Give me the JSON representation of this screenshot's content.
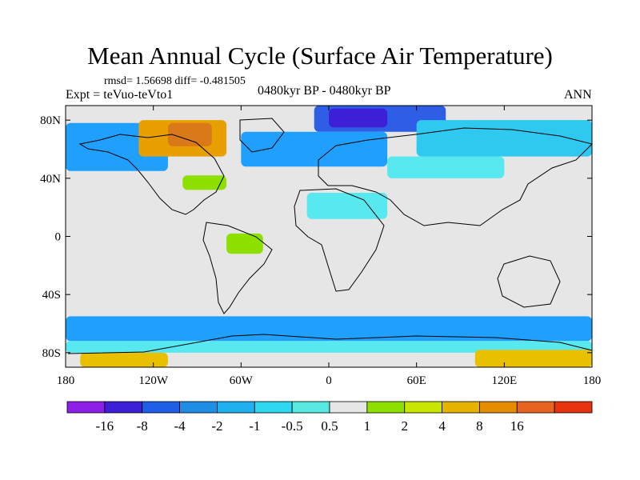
{
  "title": "Mean Annual Cycle (Surface Air Temperature)",
  "stats": "rmsd= 1.56698 diff= -0.481505",
  "experiment": "Expt = teVuo-teVto1",
  "period": "0480kyr BP - 0480kyr BP",
  "season": "ANN",
  "map": {
    "projection": "cylindrical equidistant",
    "lon_range": [
      -180,
      180
    ],
    "lat_range": [
      -90,
      90
    ],
    "lat_labels": [
      {
        "lat": 80,
        "text": "80N"
      },
      {
        "lat": 40,
        "text": "40N"
      },
      {
        "lat": 0,
        "text": "0"
      },
      {
        "lat": -40,
        "text": "40S"
      },
      {
        "lat": -80,
        "text": "80S"
      }
    ],
    "lon_labels": [
      {
        "lon": -180,
        "text": "180"
      },
      {
        "lon": -120,
        "text": "120W"
      },
      {
        "lon": -60,
        "text": "60W"
      },
      {
        "lon": 0,
        "text": "0"
      },
      {
        "lon": 60,
        "text": "60E"
      },
      {
        "lon": 120,
        "text": "120E"
      },
      {
        "lon": 180,
        "text": "180"
      }
    ],
    "background_color": "#e6e6e6",
    "regions": [
      {
        "name": "arctic-cold",
        "color": "#2e5ee6",
        "lon": [
          -10,
          80
        ],
        "lat": [
          72,
          90
        ]
      },
      {
        "name": "arctic-cold-core",
        "color": "#3c1fd6",
        "lon": [
          0,
          40
        ],
        "lat": [
          75,
          88
        ]
      },
      {
        "name": "north-pacific-cool",
        "color": "#1fa0ff",
        "lon": [
          -180,
          -110
        ],
        "lat": [
          45,
          78
        ]
      },
      {
        "name": "north-atlantic-cool",
        "color": "#1fa0ff",
        "lon": [
          -60,
          40
        ],
        "lat": [
          48,
          72
        ]
      },
      {
        "name": "siberia-cool",
        "color": "#2ec8f0",
        "lon": [
          60,
          180
        ],
        "lat": [
          55,
          80
        ]
      },
      {
        "name": "central-asia-cool",
        "color": "#57e8f0",
        "lon": [
          40,
          120
        ],
        "lat": [
          40,
          55
        ]
      },
      {
        "name": "canada-warm",
        "color": "#e8a000",
        "lon": [
          -130,
          -70
        ],
        "lat": [
          55,
          80
        ]
      },
      {
        "name": "canada-warm-core",
        "color": "#d9791a",
        "lon": [
          -110,
          -80
        ],
        "lat": [
          62,
          78
        ]
      },
      {
        "name": "eastern-us-mild",
        "color": "#8ee000",
        "lon": [
          -100,
          -70
        ],
        "lat": [
          32,
          42
        ]
      },
      {
        "name": "amazon-mild",
        "color": "#8ee000",
        "lon": [
          -70,
          -45
        ],
        "lat": [
          -12,
          2
        ]
      },
      {
        "name": "sahara-cool",
        "color": "#57e8f0",
        "lon": [
          -15,
          40
        ],
        "lat": [
          12,
          30
        ]
      },
      {
        "name": "southern-ocean-cool",
        "color": "#1fa0ff",
        "lon": [
          -180,
          180
        ],
        "lat": [
          -72,
          -55
        ]
      },
      {
        "name": "antarctic-coast-cool",
        "color": "#57e8f0",
        "lon": [
          -180,
          180
        ],
        "lat": [
          -80,
          -72
        ]
      },
      {
        "name": "antarctica-warm-west",
        "color": "#e8c000",
        "lon": [
          -170,
          -110
        ],
        "lat": [
          -90,
          -80
        ]
      },
      {
        "name": "antarctica-warm-east",
        "color": "#e8c000",
        "lon": [
          100,
          180
        ],
        "lat": [
          -90,
          -78
        ]
      }
    ]
  },
  "colorbar": {
    "colors": [
      "#8e1fe6",
      "#3c1fd6",
      "#1f5ee6",
      "#1f8ee6",
      "#1fb0f0",
      "#2ed8f0",
      "#57e8e0",
      "#e6e6e6",
      "#8ee000",
      "#c8e600",
      "#e6b400",
      "#e68c00",
      "#e6641f",
      "#e6320f"
    ],
    "labels": [
      "-16",
      "-8",
      "-4",
      "-2",
      "-1",
      "-0.5",
      "0.5",
      "1",
      "2",
      "4",
      "8",
      "16"
    ]
  }
}
